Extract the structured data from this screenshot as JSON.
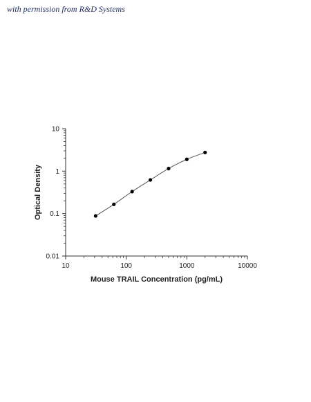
{
  "header": {
    "note": "with permission from R&D Systems"
  },
  "chart_data": {
    "type": "scatter",
    "title": "",
    "xlabel": "Mouse TRAIL Concentration (pg/mL)",
    "ylabel": "Optical Density",
    "x_scale": "log",
    "y_scale": "log",
    "xlim": [
      10,
      10000
    ],
    "ylim": [
      0.01,
      10
    ],
    "x_ticks": [
      10,
      100,
      1000,
      10000
    ],
    "x_tick_labels": [
      "10",
      "100",
      "1000",
      "10000"
    ],
    "y_ticks": [
      0.01,
      0.1,
      1,
      10
    ],
    "y_tick_labels": [
      "0.01",
      "0.1",
      "1",
      "10"
    ],
    "grid": false,
    "legend": "none",
    "series": [
      {
        "x": [
          31.25,
          62.5,
          125,
          250,
          500,
          1000,
          2000
        ],
        "y": [
          0.088,
          0.165,
          0.33,
          0.62,
          1.15,
          1.9,
          2.75
        ],
        "fit_curve": true
      }
    ],
    "colors": {
      "marker": "#000000",
      "curve": "#555555",
      "axis": "#333333"
    }
  }
}
